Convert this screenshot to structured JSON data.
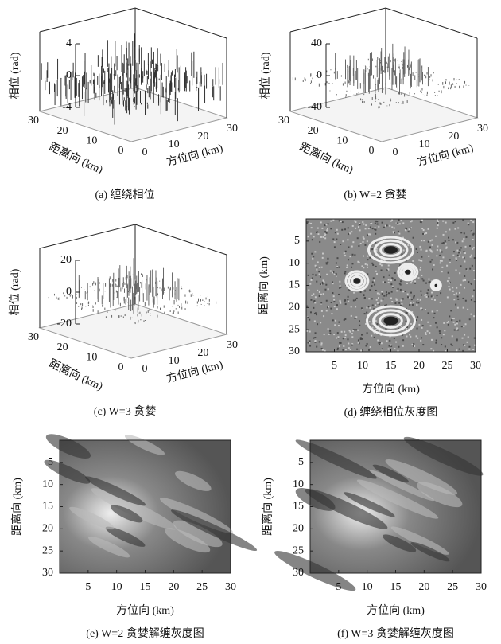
{
  "panels": [
    {
      "kind": "surface",
      "caption": "(a) 缠绕相位",
      "z_label": "相位 (rad)",
      "x_label": "方位向 (km)",
      "y_label": "距离向 (km)",
      "zticks": [
        -4,
        0,
        4
      ],
      "xticks": [
        0,
        10,
        20,
        30
      ],
      "yticks": [
        0,
        10,
        20,
        30
      ]
    },
    {
      "kind": "surface",
      "caption": "(b) W=2 贪婪",
      "z_label": "相位 (rad)",
      "x_label": "方位向 (km)",
      "y_label": "距离向 (km)",
      "zticks": [
        -40,
        0,
        40
      ],
      "xticks": [
        0,
        10,
        20,
        30
      ],
      "yticks": [
        0,
        10,
        20,
        30
      ]
    },
    {
      "kind": "surface",
      "caption": "(c) W=3 贪婪",
      "z_label": "相位 (rad)",
      "x_label": "方位向 (km)",
      "y_label": "距离向 (km)",
      "zticks": [
        -20,
        0,
        20
      ],
      "xticks": [
        0,
        10,
        20,
        30
      ],
      "yticks": [
        0,
        10,
        20,
        30
      ]
    },
    {
      "kind": "image",
      "caption": "(d) 缠绕相位灰度图",
      "x_label": "方位向 (km)",
      "y_label": "距离向 (km)",
      "xlim": [
        0,
        30
      ],
      "ylim": [
        0,
        30
      ],
      "xticks": [
        5,
        10,
        15,
        20,
        25,
        30
      ],
      "yticks": [
        5,
        10,
        15,
        20,
        25,
        30
      ]
    },
    {
      "kind": "image",
      "caption": "(e) W=2 贪婪解缠灰度图",
      "x_label": "方位向 (km)",
      "y_label": "距离向 (km)",
      "xlim": [
        0,
        30
      ],
      "ylim": [
        0,
        30
      ],
      "xticks": [
        5,
        10,
        15,
        20,
        25,
        30
      ],
      "yticks": [
        5,
        10,
        15,
        20,
        25,
        30
      ]
    },
    {
      "kind": "image",
      "caption": "(f) W=3 贪婪解缠灰度图",
      "x_label": "方位向 (km)",
      "y_label": "距离向 (km)",
      "xlim": [
        0,
        30
      ],
      "ylim": [
        0,
        30
      ],
      "xticks": [
        5,
        10,
        15,
        20,
        25,
        30
      ],
      "yticks": [
        5,
        10,
        15,
        20,
        25,
        30
      ]
    }
  ]
}
